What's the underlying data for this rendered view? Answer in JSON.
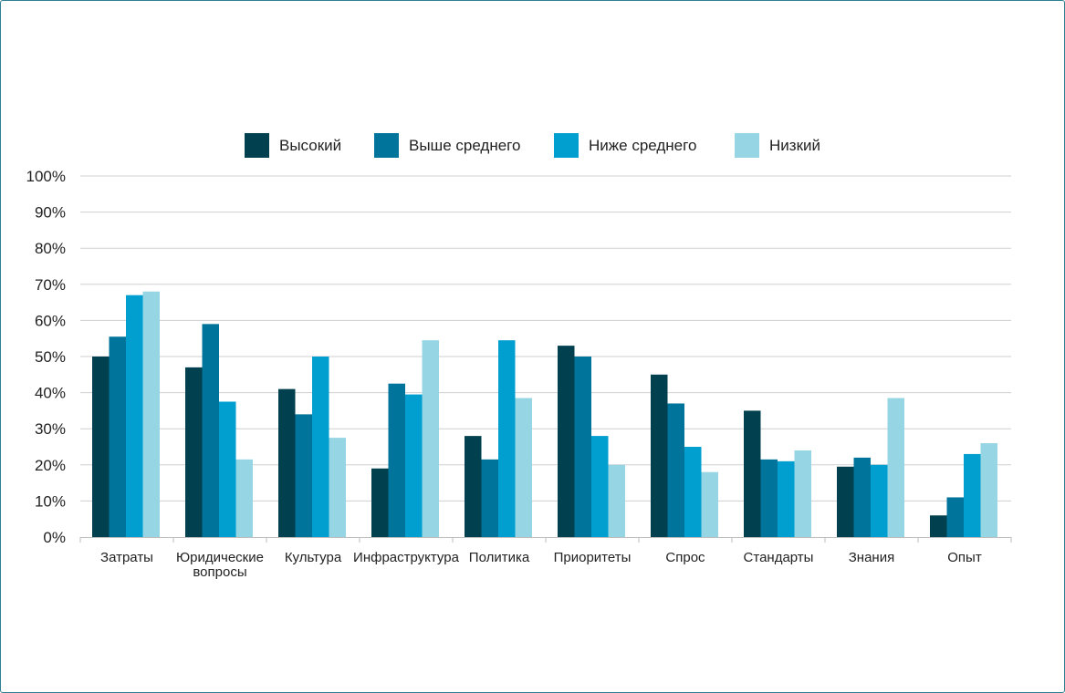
{
  "chart_data": {
    "type": "bar",
    "title": "",
    "xlabel": "",
    "ylabel": "",
    "ylim": [
      0,
      100
    ],
    "yticks": [
      "0%",
      "10%",
      "20%",
      "30%",
      "40%",
      "50%",
      "60%",
      "70%",
      "80%",
      "90%",
      "100%"
    ],
    "grid": true,
    "legend_position": "top-center",
    "categories": [
      "Затраты",
      "Юридические вопросы",
      "Культура",
      "Инфраструктура",
      "Политика",
      "Приоритеты",
      "Спрос",
      "Стандарты",
      "Знания",
      "Опыт"
    ],
    "category_label_lines": [
      [
        "Затраты"
      ],
      [
        "Юридические",
        "вопросы"
      ],
      [
        "Культура"
      ],
      [
        "Инфраструктура"
      ],
      [
        "Политика"
      ],
      [
        "Приоритеты"
      ],
      [
        "Спрос"
      ],
      [
        "Стандарты"
      ],
      [
        "Знания"
      ],
      [
        "Опыт"
      ]
    ],
    "series": [
      {
        "name": "Высокий",
        "color": "#00404f",
        "values": [
          50,
          47,
          41,
          19,
          28,
          53,
          45,
          35,
          19.5,
          6
        ]
      },
      {
        "name": "Выше среднего",
        "color": "#00749a",
        "values": [
          55.5,
          59,
          34,
          42.5,
          21.5,
          50,
          37,
          21.5,
          22,
          11
        ]
      },
      {
        "name": "Ниже среднего",
        "color": "#009fd0",
        "values": [
          67,
          37.5,
          50,
          39.5,
          54.5,
          28,
          25,
          21,
          20,
          23
        ]
      },
      {
        "name": "Низкий",
        "color": "#96d5e3",
        "values": [
          68,
          21.5,
          27.5,
          54.5,
          38.5,
          20,
          18,
          24,
          38.5,
          26
        ]
      }
    ]
  }
}
